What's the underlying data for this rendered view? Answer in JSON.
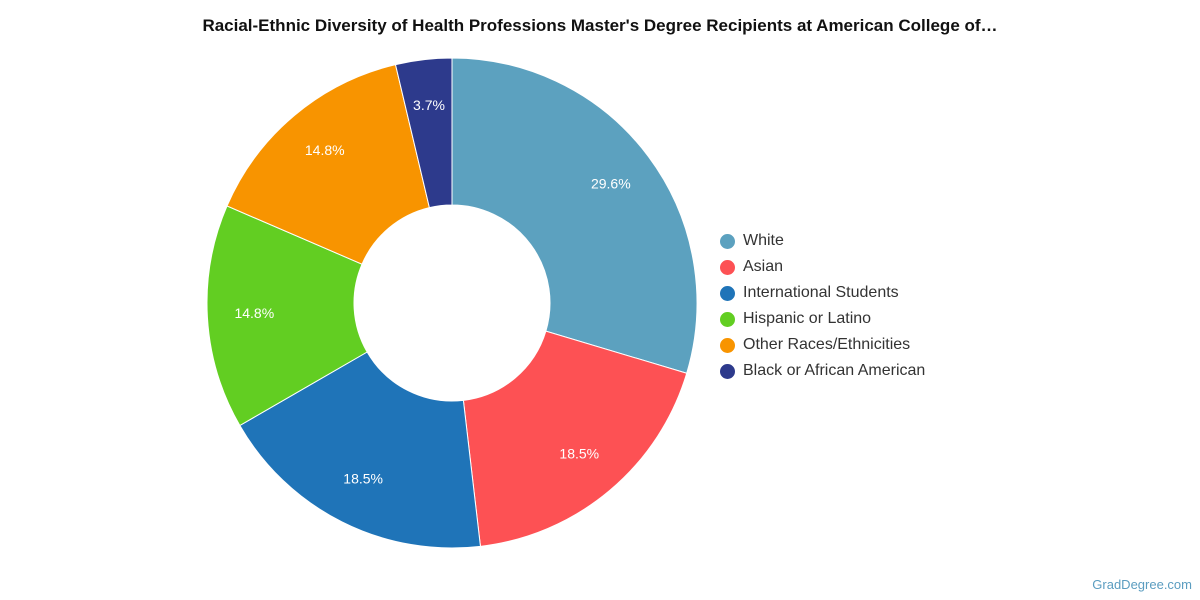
{
  "chart_data": {
    "type": "pie",
    "title": "Racial-Ethnic Diversity of Health Professions Master's Degree Recipients at American College of…",
    "donut": true,
    "legend_position": "right",
    "slices": [
      {
        "name": "White",
        "value": 29.6,
        "label": "29.6%",
        "color": "#5ca1bf"
      },
      {
        "name": "Asian",
        "value": 18.5,
        "label": "18.5%",
        "color": "#fd5154"
      },
      {
        "name": "International Students",
        "value": 18.5,
        "label": "18.5%",
        "color": "#1f74b8"
      },
      {
        "name": "Hispanic or Latino",
        "value": 14.8,
        "label": "14.8%",
        "color": "#62ce22"
      },
      {
        "name": "Other Races/Ethnicities",
        "value": 14.8,
        "label": "14.8%",
        "color": "#f89400"
      },
      {
        "name": "Black or African American",
        "value": 3.7,
        "label": "3.7%",
        "color": "#2d3a8c"
      }
    ]
  },
  "watermark": "GradDegree.com"
}
